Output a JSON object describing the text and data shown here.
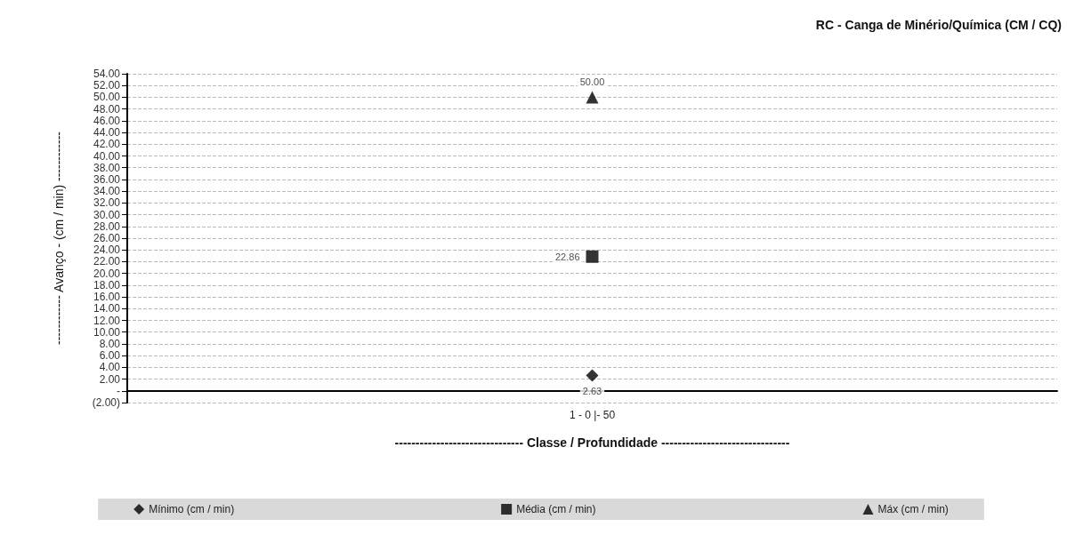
{
  "chart_data": {
    "type": "scatter",
    "title": "RC - Canga de Minério/Química (CM / CQ)",
    "xlabel": "------------------------------- Classe / Profundidade -------------------------------",
    "ylabel": "------------ Avanço - (cm / min) ------------",
    "categories": [
      "1 - 0 |- 50"
    ],
    "series": [
      {
        "name": "Mínimo (cm / min)",
        "color": "#000000",
        "marker": "diamond",
        "values": [
          2.63
        ],
        "value_labels": [
          "2.63"
        ]
      },
      {
        "name": "Média (cm / min)",
        "color": "#000000",
        "marker": "square",
        "values": [
          22.86
        ],
        "value_labels": [
          "22.86"
        ]
      },
      {
        "name": "Máx (cm / min)",
        "color": "#000000",
        "marker": "triangle",
        "values": [
          50
        ],
        "value_labels": [
          "50.00"
        ]
      }
    ],
    "ylim": [
      -2,
      54
    ],
    "yticks": [
      {
        "value": -2,
        "label": "(2.00)"
      },
      {
        "value": 0,
        "label": "-"
      },
      {
        "value": 2,
        "label": "2.00"
      },
      {
        "value": 4,
        "label": "4.00"
      },
      {
        "value": 6,
        "label": "6.00"
      },
      {
        "value": 8,
        "label": "8.00"
      },
      {
        "value": 10,
        "label": "10.00"
      },
      {
        "value": 12,
        "label": "12.00"
      },
      {
        "value": 14,
        "label": "14.00"
      },
      {
        "value": 16,
        "label": "16.00"
      },
      {
        "value": 18,
        "label": "18.00"
      },
      {
        "value": 20,
        "label": "20.00"
      },
      {
        "value": 22,
        "label": "22.00"
      },
      {
        "value": 24,
        "label": "24.00"
      },
      {
        "value": 26,
        "label": "26.00"
      },
      {
        "value": 28,
        "label": "28.00"
      },
      {
        "value": 30,
        "label": "30.00"
      },
      {
        "value": 32,
        "label": "32.00"
      },
      {
        "value": 34,
        "label": "34.00"
      },
      {
        "value": 36,
        "label": "36.00"
      },
      {
        "value": 38,
        "label": "38.00"
      },
      {
        "value": 40,
        "label": "40.00"
      },
      {
        "value": 42,
        "label": "42.00"
      },
      {
        "value": 44,
        "label": "44.00"
      },
      {
        "value": 46,
        "label": "46.00"
      },
      {
        "value": 48,
        "label": "48.00"
      },
      {
        "value": 50,
        "label": "50.00"
      },
      {
        "value": 52,
        "label": "52.00"
      },
      {
        "value": 54,
        "label": "54.00"
      }
    ],
    "grid": "y",
    "legend": "bottom"
  }
}
